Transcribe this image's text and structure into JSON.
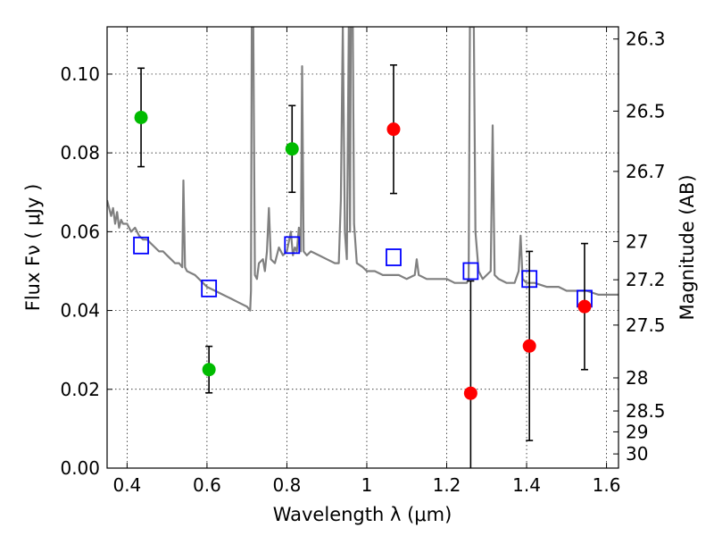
{
  "chart_data": {
    "type": "scatter",
    "title": "",
    "xlabel": "Wavelength  λ (μm)",
    "ylabel": "Flux  Fν  ( μJy )",
    "y2label": "Magnitude (AB)",
    "xlim": [
      0.35,
      1.63
    ],
    "ylim": [
      0.0,
      0.112
    ],
    "x_ticks": [
      0.4,
      0.6,
      0.8,
      1.0,
      1.2,
      1.4,
      1.6
    ],
    "x_tick_labels": [
      "0.4",
      "0.6",
      "0.8",
      "1",
      "1.2",
      "1.4",
      "1.6"
    ],
    "y_ticks": [
      0.0,
      0.02,
      0.04,
      0.06,
      0.08,
      0.1
    ],
    "y_tick_labels": [
      "0.00",
      "0.02",
      "0.04",
      "0.06",
      "0.08",
      "0.10"
    ],
    "y2_ticks": [
      {
        "label": "26.3",
        "flux": 0.1089
      },
      {
        "label": "26.5",
        "flux": 0.0906
      },
      {
        "label": "26.7",
        "flux": 0.0753
      },
      {
        "label": "27",
        "flux": 0.0575
      },
      {
        "label": "27.2",
        "flux": 0.0478
      },
      {
        "label": "27.5",
        "flux": 0.0363
      },
      {
        "label": "28",
        "flux": 0.0229
      },
      {
        "label": "28.5",
        "flux": 0.0145
      },
      {
        "label": "29",
        "flux": 0.0092
      },
      {
        "label": "30",
        "flux": 0.0036
      }
    ],
    "grid": true,
    "colors": {
      "spectrum": "#808080",
      "model_boxes": "#0000ff",
      "observed_green": "#00bb00",
      "observed_red": "#ff0000",
      "errorbar": "#000000"
    },
    "series": [
      {
        "kind": "line",
        "points": [
          [
            0.35,
            0.068
          ],
          [
            0.36,
            0.064
          ],
          [
            0.365,
            0.066
          ],
          [
            0.37,
            0.062
          ],
          [
            0.375,
            0.065
          ],
          [
            0.38,
            0.061
          ],
          [
            0.385,
            0.063
          ],
          [
            0.39,
            0.062
          ],
          [
            0.4,
            0.062
          ],
          [
            0.41,
            0.06
          ],
          [
            0.42,
            0.061
          ],
          [
            0.43,
            0.059
          ],
          [
            0.44,
            0.058
          ],
          [
            0.45,
            0.058
          ],
          [
            0.46,
            0.057
          ],
          [
            0.47,
            0.056
          ],
          [
            0.48,
            0.055
          ],
          [
            0.49,
            0.055
          ],
          [
            0.5,
            0.054
          ],
          [
            0.51,
            0.053
          ],
          [
            0.52,
            0.052
          ],
          [
            0.53,
            0.052
          ],
          [
            0.538,
            0.051
          ],
          [
            0.541,
            0.073
          ],
          [
            0.545,
            0.051
          ],
          [
            0.55,
            0.05
          ],
          [
            0.57,
            0.049
          ],
          [
            0.59,
            0.047
          ],
          [
            0.6,
            0.046
          ],
          [
            0.62,
            0.045
          ],
          [
            0.64,
            0.044
          ],
          [
            0.66,
            0.043
          ],
          [
            0.68,
            0.042
          ],
          [
            0.7,
            0.041
          ],
          [
            0.708,
            0.04
          ],
          [
            0.71,
            0.045
          ],
          [
            0.712,
            0.112
          ],
          [
            0.716,
            0.112
          ],
          [
            0.72,
            0.049
          ],
          [
            0.725,
            0.048
          ],
          [
            0.73,
            0.052
          ],
          [
            0.74,
            0.053
          ],
          [
            0.745,
            0.05
          ],
          [
            0.75,
            0.055
          ],
          [
            0.755,
            0.066
          ],
          [
            0.76,
            0.053
          ],
          [
            0.77,
            0.052
          ],
          [
            0.78,
            0.056
          ],
          [
            0.79,
            0.054
          ],
          [
            0.8,
            0.055
          ],
          [
            0.81,
            0.06
          ],
          [
            0.815,
            0.054
          ],
          [
            0.82,
            0.056
          ],
          [
            0.825,
            0.055
          ],
          [
            0.83,
            0.061
          ],
          [
            0.835,
            0.055
          ],
          [
            0.838,
            0.102
          ],
          [
            0.842,
            0.055
          ],
          [
            0.85,
            0.054
          ],
          [
            0.86,
            0.055
          ],
          [
            0.88,
            0.054
          ],
          [
            0.9,
            0.053
          ],
          [
            0.92,
            0.052
          ],
          [
            0.93,
            0.052
          ],
          [
            0.935,
            0.068
          ],
          [
            0.94,
            0.112
          ],
          [
            0.945,
            0.06
          ],
          [
            0.95,
            0.053
          ],
          [
            0.955,
            0.112
          ],
          [
            0.958,
            0.06
          ],
          [
            0.96,
            0.112
          ],
          [
            0.965,
            0.112
          ],
          [
            0.968,
            0.062
          ],
          [
            0.975,
            0.052
          ],
          [
            0.99,
            0.051
          ],
          [
            1.0,
            0.05
          ],
          [
            1.02,
            0.05
          ],
          [
            1.04,
            0.049
          ],
          [
            1.06,
            0.049
          ],
          [
            1.08,
            0.049
          ],
          [
            1.1,
            0.048
          ],
          [
            1.12,
            0.049
          ],
          [
            1.125,
            0.053
          ],
          [
            1.13,
            0.049
          ],
          [
            1.15,
            0.048
          ],
          [
            1.18,
            0.048
          ],
          [
            1.2,
            0.048
          ],
          [
            1.22,
            0.047
          ],
          [
            1.24,
            0.047
          ],
          [
            1.25,
            0.047
          ],
          [
            1.255,
            0.048
          ],
          [
            1.258,
            0.112
          ],
          [
            1.268,
            0.112
          ],
          [
            1.272,
            0.06
          ],
          [
            1.28,
            0.05
          ],
          [
            1.29,
            0.048
          ],
          [
            1.3,
            0.049
          ],
          [
            1.31,
            0.05
          ],
          [
            1.315,
            0.087
          ],
          [
            1.32,
            0.049
          ],
          [
            1.33,
            0.048
          ],
          [
            1.35,
            0.047
          ],
          [
            1.37,
            0.047
          ],
          [
            1.38,
            0.05
          ],
          [
            1.385,
            0.059
          ],
          [
            1.39,
            0.048
          ],
          [
            1.4,
            0.047
          ],
          [
            1.42,
            0.047
          ],
          [
            1.45,
            0.046
          ],
          [
            1.48,
            0.046
          ],
          [
            1.5,
            0.045
          ],
          [
            1.52,
            0.045
          ],
          [
            1.55,
            0.045
          ],
          [
            1.58,
            0.044
          ],
          [
            1.6,
            0.044
          ],
          [
            1.63,
            0.044
          ]
        ]
      },
      {
        "kind": "boxes",
        "points": [
          [
            0.435,
            0.0565
          ],
          [
            0.605,
            0.0456
          ],
          [
            0.813,
            0.0566
          ],
          [
            1.067,
            0.0535
          ],
          [
            1.26,
            0.05
          ],
          [
            1.407,
            0.048
          ],
          [
            1.545,
            0.043
          ]
        ]
      },
      {
        "kind": "errorbar-points",
        "points": [
          {
            "x": 0.435,
            "y": 0.089,
            "err": 0.0125,
            "color": "green"
          },
          {
            "x": 0.605,
            "y": 0.025,
            "err": 0.0059,
            "color": "green"
          },
          {
            "x": 0.813,
            "y": 0.081,
            "err": 0.011,
            "color": "green"
          },
          {
            "x": 1.067,
            "y": 0.086,
            "err": 0.0163,
            "color": "red"
          },
          {
            "x": 1.26,
            "y": 0.019,
            "err": 0.0285,
            "color": "red"
          },
          {
            "x": 1.407,
            "y": 0.031,
            "err": 0.024,
            "color": "red"
          },
          {
            "x": 1.545,
            "y": 0.041,
            "err": 0.016,
            "color": "red"
          }
        ]
      }
    ]
  }
}
